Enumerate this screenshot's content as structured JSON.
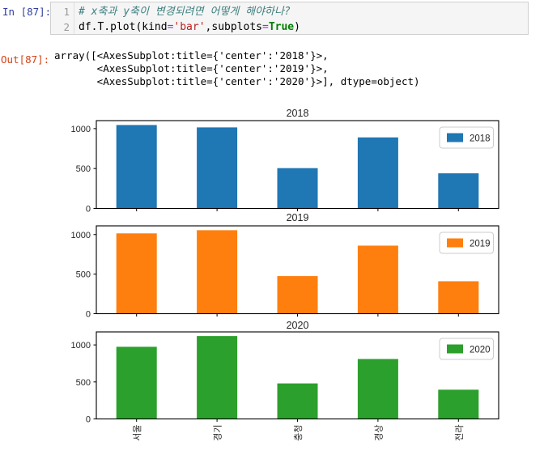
{
  "cell": {
    "in_prompt": "In [87]:",
    "out_prompt": "Out[87]:",
    "line_numbers": [
      "1",
      "2"
    ],
    "code": {
      "comment_line": "# x축과 y축이 변경되려면 어떻게 해야하나?",
      "line2_tokens": [
        {
          "t": "df.T.plot(kind",
          "c": "p"
        },
        {
          "t": "=",
          "c": "o"
        },
        {
          "t": "'bar'",
          "c": "s"
        },
        {
          "t": ",subplots",
          "c": "p"
        },
        {
          "t": "=",
          "c": "o"
        },
        {
          "t": "True",
          "c": "k"
        },
        {
          "t": ")",
          "c": "p"
        }
      ]
    },
    "output_lines": [
      "array([<AxesSubplot:title={'center':'2018'}>,",
      "       <AxesSubplot:title={'center':'2019'}>,",
      "       <AxesSubplot:title={'center':'2020'}>], dtype=object)"
    ]
  },
  "chart_data": [
    {
      "type": "bar",
      "title": "2018",
      "legend": [
        "2018"
      ],
      "legend_position": "upper right",
      "color": "#1f77b4",
      "categories": [
        "서울",
        "경기",
        "충청",
        "경상",
        "전라"
      ],
      "values": [
        1045,
        1015,
        505,
        890,
        440
      ],
      "yticks": [
        0,
        500,
        1000
      ],
      "ylim": [
        0,
        1100
      ],
      "grid": false,
      "show_xticklabels": false
    },
    {
      "type": "bar",
      "title": "2019",
      "legend": [
        "2019"
      ],
      "legend_position": "upper right",
      "color": "#ff7f0e",
      "categories": [
        "서울",
        "경기",
        "충청",
        "경상",
        "전라"
      ],
      "values": [
        1015,
        1055,
        475,
        860,
        410
      ],
      "yticks": [
        0,
        500,
        1000
      ],
      "ylim": [
        0,
        1110
      ],
      "grid": false,
      "show_xticklabels": false
    },
    {
      "type": "bar",
      "title": "2020",
      "legend": [
        "2020"
      ],
      "legend_position": "upper right",
      "color": "#2ca02c",
      "categories": [
        "서울",
        "경기",
        "충청",
        "경상",
        "전라"
      ],
      "values": [
        975,
        1120,
        480,
        810,
        395
      ],
      "yticks": [
        0,
        500,
        1000
      ],
      "ylim": [
        0,
        1176
      ],
      "grid": false,
      "show_xticklabels": true,
      "xticklabel_rotation": 90
    }
  ],
  "colors": {
    "bar_2018": "#1f77b4",
    "bar_2019": "#ff7f0e",
    "bar_2020": "#2ca02c",
    "in_prompt": "#303f9f",
    "out_prompt": "#d84315",
    "axis": "#000000",
    "tick_label": "#262626"
  }
}
